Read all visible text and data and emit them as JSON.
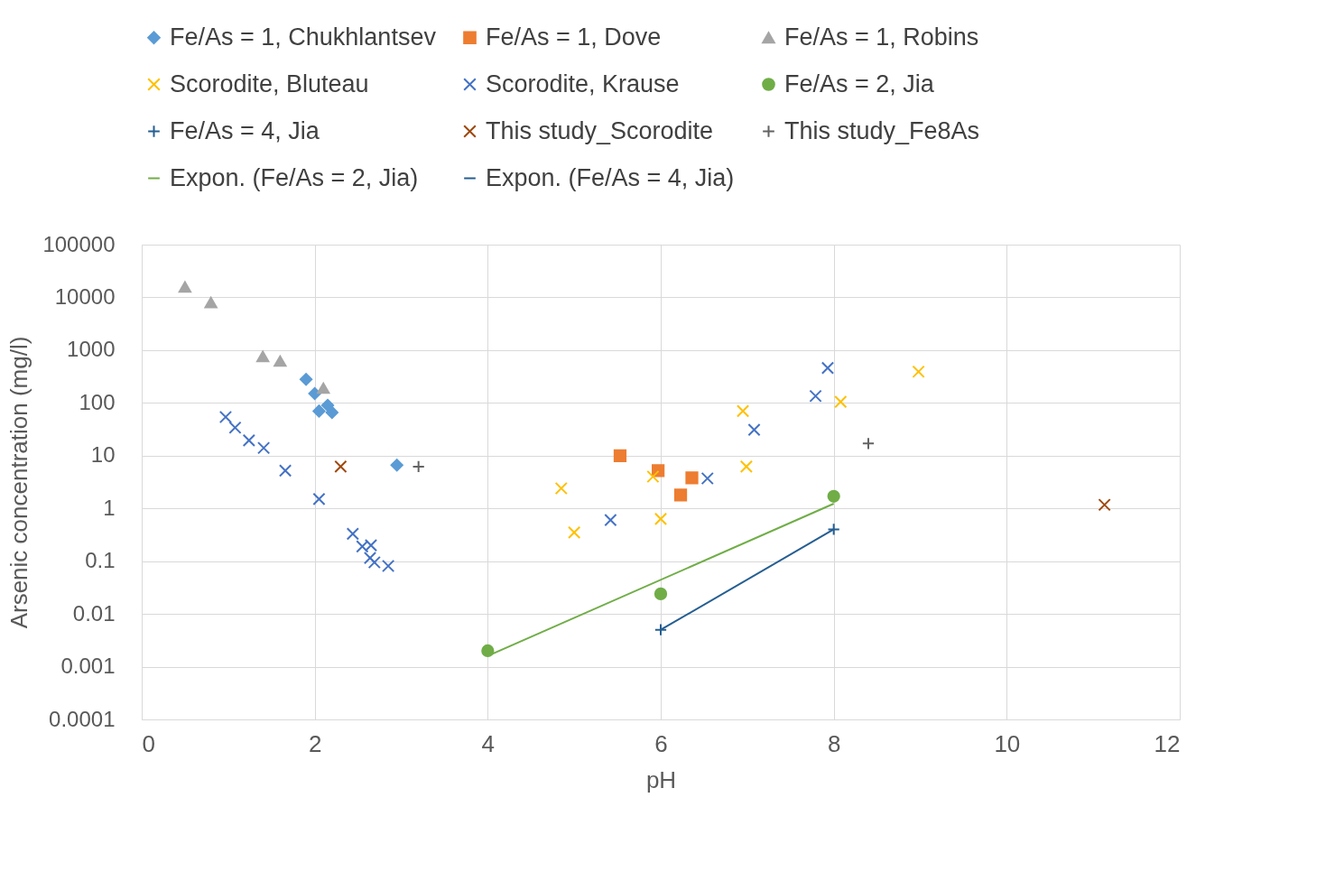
{
  "chart_data": {
    "type": "scatter",
    "xlabel": "pH",
    "ylabel": "Arsenic concentration (mg/l)",
    "log": "y",
    "grid": true,
    "legend": "top",
    "xlim": [
      0,
      12
    ],
    "xticks": [
      0,
      2,
      4,
      6,
      8,
      10,
      12
    ],
    "ylim": [
      0.0001,
      100000
    ],
    "yticks": [
      0.0001,
      0.001,
      0.01,
      0.1,
      1,
      10,
      100,
      1000,
      10000,
      100000
    ],
    "series": [
      {
        "name": "Fe/As = 1, Chukhlantsev",
        "color": "#5b9bd5",
        "marker": "diamond",
        "x": [
          1.9,
          2.0,
          2.05,
          2.15,
          2.2,
          2.95
        ],
        "values": [
          280,
          150,
          70,
          90,
          66,
          6.6
        ]
      },
      {
        "name": "Fe/As = 1, Dove",
        "color": "#ed7d31",
        "marker": "square",
        "x": [
          5.53,
          5.97,
          6.36,
          6.23
        ],
        "values": [
          10,
          5.2,
          3.8,
          1.8
        ]
      },
      {
        "name": "Fe/As = 1, Robins",
        "color": "#a5a5a5",
        "marker": "triangle",
        "x": [
          0.5,
          0.8,
          1.4,
          1.6,
          2.1
        ],
        "values": [
          15800,
          8000,
          760,
          620,
          190
        ]
      },
      {
        "name": "Scorodite, Bluteau",
        "color": "#ffc000",
        "marker": "cross",
        "x": [
          4.85,
          5.0,
          5.91,
          6.0,
          6.95,
          6.99,
          8.08,
          8.98
        ],
        "values": [
          2.4,
          0.35,
          4.0,
          0.63,
          70,
          6.2,
          105,
          390
        ]
      },
      {
        "name": "Scorodite, Krause",
        "color": "#4472c4",
        "marker": "cross",
        "x": [
          0.97,
          1.08,
          1.24,
          1.41,
          1.66,
          2.05,
          2.44,
          2.55,
          2.65,
          2.64,
          2.69,
          2.85,
          5.42,
          6.54,
          7.08,
          7.79,
          7.93
        ],
        "values": [
          54,
          34,
          19.5,
          14,
          5.2,
          1.5,
          0.33,
          0.19,
          0.2,
          0.115,
          0.095,
          0.081,
          0.6,
          3.7,
          31,
          135,
          460
        ]
      },
      {
        "name": "Fe/As = 2, Jia",
        "color": "#70ad47",
        "marker": "circle",
        "x": [
          4,
          6,
          8
        ],
        "values": [
          0.002,
          0.024,
          1.7
        ]
      },
      {
        "name": "Fe/As = 4, Jia",
        "color": "#255e91",
        "marker": "plus",
        "x": [
          6,
          8
        ],
        "values": [
          0.005,
          0.4
        ]
      },
      {
        "name": "This study_Scorodite",
        "color": "#9e480e",
        "marker": "cross",
        "x": [
          2.3,
          11.13
        ],
        "values": [
          6.2,
          1.17
        ]
      },
      {
        "name": "This study_Fe8As",
        "color": "#636363",
        "marker": "plus",
        "x": [
          3.2,
          8.4
        ],
        "values": [
          6.2,
          17
        ]
      },
      {
        "name": "Expon. (Fe/As = 2, Jia)",
        "type": "line",
        "color": "#70ad47",
        "x": [
          4,
          8
        ],
        "values": [
          0.0016,
          1.23
        ]
      },
      {
        "name": "Expon. (Fe/As = 4, Jia)",
        "type": "line",
        "color": "#255e91",
        "x": [
          6,
          8
        ],
        "values": [
          0.005,
          0.4
        ]
      }
    ]
  }
}
